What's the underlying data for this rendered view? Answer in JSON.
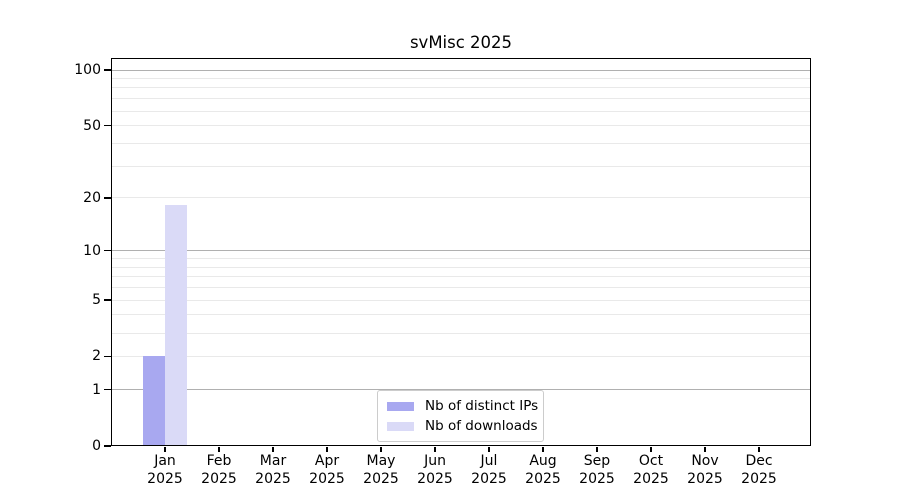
{
  "chart_data": {
    "type": "bar",
    "title": "svMisc 2025",
    "categories": [
      "Jan",
      "Feb",
      "Mar",
      "Apr",
      "May",
      "Jun",
      "Jul",
      "Aug",
      "Sep",
      "Oct",
      "Nov",
      "Dec"
    ],
    "category_year": "2025",
    "series": [
      {
        "name": "Nb of distinct IPs",
        "color": "#a8a8f0",
        "values": [
          2,
          0,
          0,
          0,
          0,
          0,
          0,
          0,
          0,
          0,
          0,
          0
        ]
      },
      {
        "name": "Nb of downloads",
        "color": "#dadaf7",
        "values": [
          18,
          0,
          0,
          0,
          0,
          0,
          0,
          0,
          0,
          0,
          0,
          0
        ]
      }
    ],
    "y_axis": {
      "scale": "log1p",
      "ylim": [
        0,
        115
      ],
      "tick_values": [
        0,
        1,
        2,
        5,
        10,
        20,
        50,
        100
      ],
      "tick_labels": [
        "0",
        "1",
        "2",
        "5",
        "10",
        "20",
        "50",
        "100"
      ],
      "major_grid_values": [
        1,
        10,
        100
      ],
      "minor_grid_values": [
        2,
        3,
        4,
        5,
        6,
        7,
        8,
        9,
        20,
        30,
        40,
        50,
        60,
        70,
        80,
        90
      ]
    },
    "legend": {
      "position": "bottom-center",
      "entries": [
        "Nb of distinct IPs",
        "Nb of downloads"
      ]
    },
    "colors": {
      "axis": "#000000",
      "major_grid": "#b0b0b0",
      "minor_grid": "#e9e9e9",
      "legend_border": "#cccccc",
      "background": "#ffffff"
    }
  }
}
